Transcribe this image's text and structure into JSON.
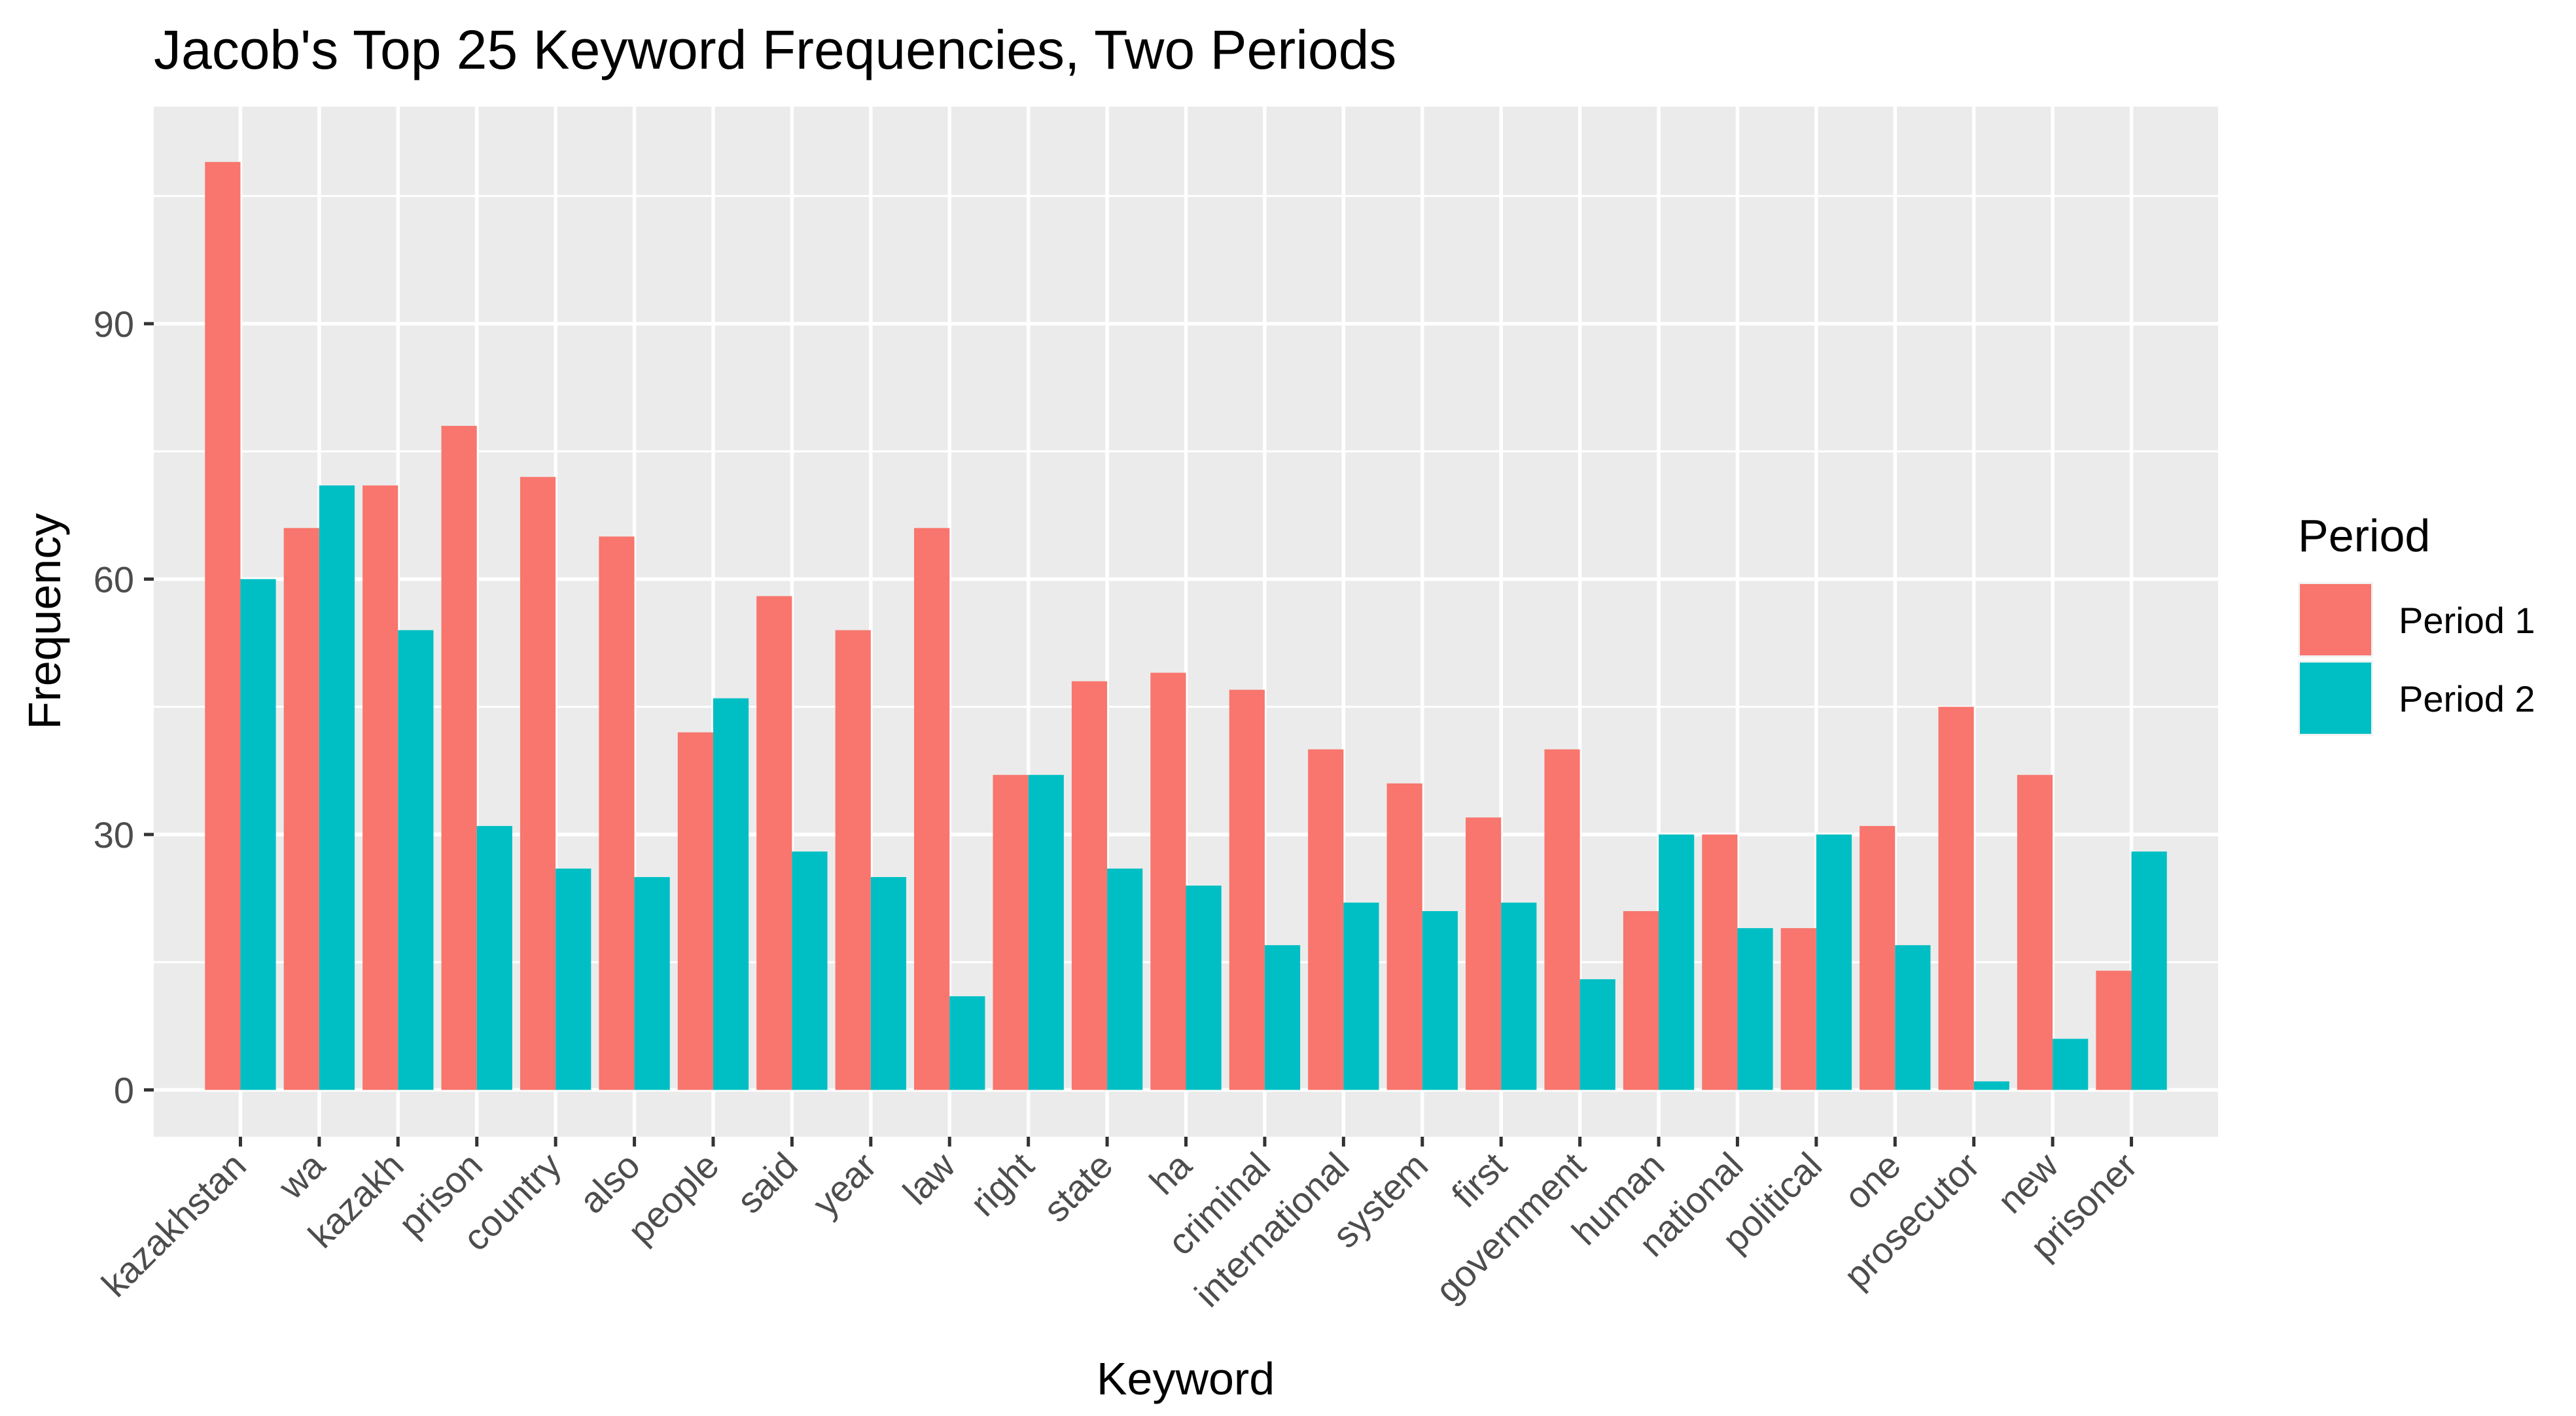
{
  "chart_data": {
    "type": "bar",
    "title": "Jacob's Top 25 Keyword Frequencies, Two Periods",
    "xlabel": "Keyword",
    "ylabel": "Frequency",
    "ylim": [
      -5.5,
      115.5
    ],
    "yticks": [
      0,
      30,
      60,
      90
    ],
    "grid": true,
    "legend_title": "Period",
    "legend_position": "right",
    "categories": [
      "kazakhstan",
      "wa",
      "kazakh",
      "prison",
      "country",
      "also",
      "people",
      "said",
      "year",
      "law",
      "right",
      "state",
      "ha",
      "criminal",
      "international",
      "system",
      "first",
      "government",
      "human",
      "national",
      "political",
      "one",
      "prosecutor",
      "new",
      "prisoner"
    ],
    "series": [
      {
        "name": "Period 1",
        "color": "#F8766D",
        "values": [
          109,
          66,
          71,
          78,
          72,
          65,
          42,
          58,
          54,
          66,
          37,
          48,
          49,
          47,
          40,
          36,
          32,
          40,
          21,
          30,
          19,
          31,
          45,
          37,
          14
        ]
      },
      {
        "name": "Period 2",
        "color": "#00BFC4",
        "values": [
          60,
          71,
          54,
          31,
          26,
          25,
          46,
          28,
          25,
          11,
          37,
          26,
          24,
          17,
          22,
          21,
          22,
          13,
          30,
          19,
          30,
          17,
          1,
          6,
          28
        ]
      }
    ]
  },
  "colors": {
    "panel_background": "#EBEBEB",
    "grid_major": "#FFFFFF",
    "tick_text": "#4D4D4D"
  }
}
